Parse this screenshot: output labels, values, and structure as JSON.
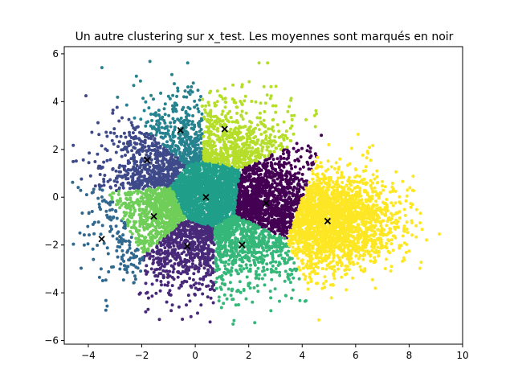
{
  "chart_data": {
    "type": "scatter",
    "title": "Un autre clustering sur x_test. Les moyennes sont marqués en noir",
    "xlabel": "",
    "ylabel": "",
    "xlim": [
      -4.9,
      10.0
    ],
    "ylim": [
      -6.15,
      6.3
    ],
    "x_ticks": [
      -4,
      -2,
      0,
      2,
      4,
      6,
      8,
      10
    ],
    "y_ticks": [
      -6,
      -4,
      -2,
      0,
      2,
      4,
      6
    ],
    "x_tick_labels": [
      "−4",
      "−2",
      "0",
      "2",
      "4",
      "6",
      "8",
      "10"
    ],
    "y_tick_labels": [
      "−6",
      "−4",
      "−2",
      "0",
      "2",
      "4",
      "6"
    ],
    "grid": false,
    "legend": "none",
    "clusters": [
      {
        "color": "#440154",
        "mean": [
          2.65,
          -0.25
        ]
      },
      {
        "color": "#482878",
        "mean": [
          -0.3,
          -2.05
        ]
      },
      {
        "color": "#3e4989",
        "mean": [
          -1.8,
          1.55
        ]
      },
      {
        "color": "#31688e",
        "mean": [
          -3.5,
          -1.75
        ]
      },
      {
        "color": "#26828e",
        "mean": [
          -0.55,
          2.8
        ]
      },
      {
        "color": "#1f9e89",
        "mean": [
          0.4,
          0.0
        ]
      },
      {
        "color": "#35b779",
        "mean": [
          1.75,
          -2.0
        ]
      },
      {
        "color": "#6ece58",
        "mean": [
          -1.55,
          -0.8
        ]
      },
      {
        "color": "#b5de2b",
        "mean": [
          1.1,
          2.85
        ]
      },
      {
        "color": "#fde725",
        "mean": [
          4.95,
          -1.0
        ]
      }
    ],
    "means_marker": {
      "shape": "x",
      "color": "#000000"
    }
  }
}
